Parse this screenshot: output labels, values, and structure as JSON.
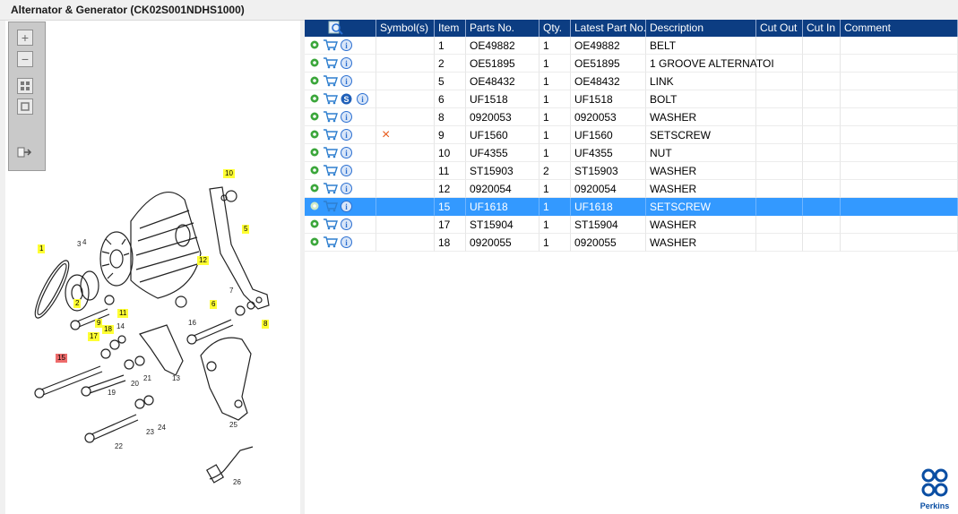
{
  "window": {
    "title": "Alternator & Generator (CK02S001NDHS1000)"
  },
  "colors": {
    "header_bg": "#0c3d82",
    "selected_row": "#3399ff",
    "gear_green": "#3aa63a",
    "cart_blue": "#2e7fcf",
    "info_blue": "#2b6fd1",
    "delete_red": "#e85a1a",
    "callout_yellow": "#ffff33",
    "callout_red": "#ee6b6b"
  },
  "toolbox": {
    "zoom_in": "+",
    "zoom_out": "−"
  },
  "diagram": {
    "callouts": [
      {
        "label": "10",
        "style": "yellow"
      },
      {
        "label": "5",
        "style": "yellow"
      },
      {
        "label": "12",
        "style": "yellow"
      },
      {
        "label": "1",
        "style": "yellow"
      },
      {
        "label": "2",
        "style": "yellow"
      },
      {
        "label": "9",
        "style": "yellow"
      },
      {
        "label": "11",
        "style": "yellow"
      },
      {
        "label": "6",
        "style": "yellow"
      },
      {
        "label": "8",
        "style": "yellow"
      },
      {
        "label": "17",
        "style": "yellow"
      },
      {
        "label": "18",
        "style": "yellow"
      },
      {
        "label": "15",
        "style": "red"
      }
    ],
    "labels": [
      "3",
      "4",
      "7",
      "14",
      "16",
      "13",
      "19",
      "20",
      "21",
      "22",
      "23",
      "24",
      "25",
      "26"
    ]
  },
  "table": {
    "columns": [
      "",
      "Symbol(s)",
      "Item",
      "Parts No.",
      "Qty.",
      "Latest Part No.",
      "Description",
      "Cut Out",
      "Cut In",
      "Comment"
    ],
    "rows": [
      {
        "s": false,
        "sym": "",
        "item": "1",
        "part": "OE49882",
        "qty": "1",
        "latest": "OE49882",
        "desc": "BELT",
        "cutout": "",
        "cutin": "",
        "comment": ""
      },
      {
        "s": false,
        "sym": "",
        "item": "2",
        "part": "OE51895",
        "qty": "1",
        "latest": "OE51895",
        "desc": "1 GROOVE ALTERNATOI",
        "cutout": "",
        "cutin": "",
        "comment": ""
      },
      {
        "s": false,
        "sym": "",
        "item": "5",
        "part": "OE48432",
        "qty": "1",
        "latest": "OE48432",
        "desc": "LINK",
        "cutout": "",
        "cutin": "",
        "comment": ""
      },
      {
        "s": true,
        "sym": "",
        "item": "6",
        "part": "UF1518",
        "qty": "1",
        "latest": "UF1518",
        "desc": "BOLT",
        "cutout": "",
        "cutin": "",
        "comment": ""
      },
      {
        "s": false,
        "sym": "",
        "item": "8",
        "part": "0920053",
        "qty": "1",
        "latest": "0920053",
        "desc": "WASHER",
        "cutout": "",
        "cutin": "",
        "comment": ""
      },
      {
        "s": false,
        "sym": "×",
        "item": "9",
        "part": "UF1560",
        "qty": "1",
        "latest": "UF1560",
        "desc": "SETSCREW",
        "cutout": "",
        "cutin": "",
        "comment": ""
      },
      {
        "s": false,
        "sym": "",
        "item": "10",
        "part": "UF4355",
        "qty": "1",
        "latest": "UF4355",
        "desc": "NUT",
        "cutout": "",
        "cutin": "",
        "comment": ""
      },
      {
        "s": false,
        "sym": "",
        "item": "11",
        "part": "ST15903",
        "qty": "2",
        "latest": "ST15903",
        "desc": "WASHER",
        "cutout": "",
        "cutin": "",
        "comment": ""
      },
      {
        "s": false,
        "sym": "",
        "item": "12",
        "part": "0920054",
        "qty": "1",
        "latest": "0920054",
        "desc": "WASHER",
        "cutout": "",
        "cutin": "",
        "comment": ""
      },
      {
        "s": false,
        "sym": "",
        "item": "15",
        "part": "UF1618",
        "qty": "1",
        "latest": "UF1618",
        "desc": "SETSCREW",
        "cutout": "",
        "cutin": "",
        "comment": "",
        "selected": true
      },
      {
        "s": false,
        "sym": "",
        "item": "17",
        "part": "ST15904",
        "qty": "1",
        "latest": "ST15904",
        "desc": "WASHER",
        "cutout": "",
        "cutin": "",
        "comment": ""
      },
      {
        "s": false,
        "sym": "",
        "item": "18",
        "part": "0920055",
        "qty": "1",
        "latest": "0920055",
        "desc": "WASHER",
        "cutout": "",
        "cutin": "",
        "comment": ""
      }
    ]
  },
  "brand": {
    "name": "Perkins"
  }
}
